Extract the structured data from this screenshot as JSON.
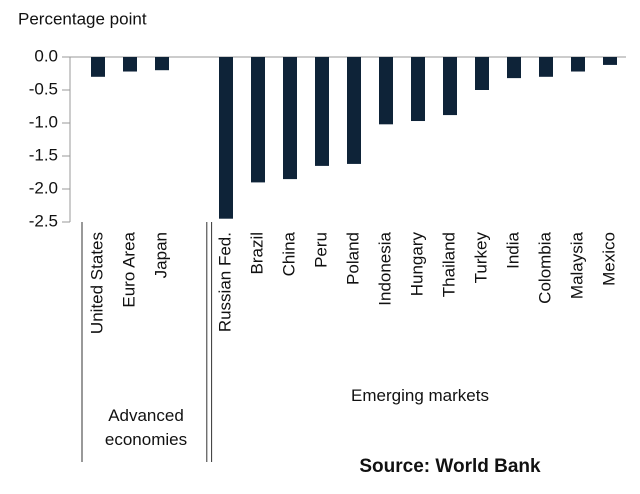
{
  "chart_data": {
    "type": "bar",
    "y_axis_label": "Percentage point",
    "categories": [
      "United States",
      "Euro Area",
      "Japan",
      null,
      "Russian Fed.",
      "Brazil",
      "China",
      "Peru",
      "Poland",
      "Indonesia",
      "Hungary",
      "Thailand",
      "Turkey",
      "India",
      "Colombia",
      "Malaysia",
      "Mexico"
    ],
    "values": [
      -0.3,
      -0.22,
      -0.2,
      null,
      -2.45,
      -1.9,
      -1.85,
      -1.65,
      -1.62,
      -1.02,
      -0.97,
      -0.88,
      -0.5,
      -0.32,
      -0.3,
      -0.22,
      -0.12
    ],
    "color": "#0e2338",
    "ylim": [
      -2.5,
      0.0
    ],
    "yticks": [
      {
        "value": 0.0,
        "label": "0.0"
      },
      -0.5,
      {
        "value": -1.0,
        "label": "-1.0"
      },
      -1.5,
      {
        "value": -2.0,
        "label": "-2.0"
      },
      -2.5
    ],
    "groups": [
      "Advanced economies",
      "Emerging markets"
    ],
    "source": "Source: World Bank"
  }
}
